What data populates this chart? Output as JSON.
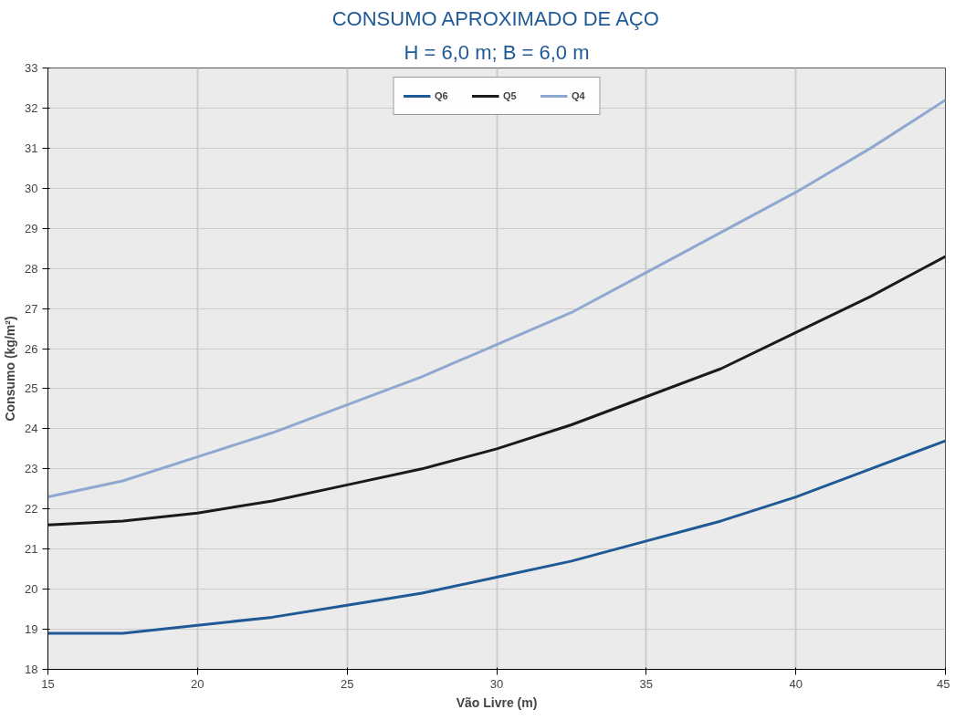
{
  "chart_data": {
    "type": "line",
    "title": "CONSUMO APROXIMADO DE AÇO",
    "subtitle": "H = 6,0 m; B = 6,0 m",
    "xlabel": "Vão Livre (m)",
    "ylabel": "Consumo (kg/m²)",
    "x": [
      15,
      17.5,
      20,
      22.5,
      25,
      27.5,
      30,
      32.5,
      35,
      37.5,
      40,
      42.5,
      45
    ],
    "series": [
      {
        "name": "Q6",
        "color": "#1f5a96",
        "values": [
          18.9,
          18.9,
          19.1,
          19.3,
          19.6,
          19.9,
          20.3,
          20.7,
          21.2,
          21.7,
          22.3,
          23.0,
          23.7
        ]
      },
      {
        "name": "Q5",
        "color": "#1a1a1a",
        "values": [
          21.6,
          21.7,
          21.9,
          22.2,
          22.6,
          23.0,
          23.5,
          24.1,
          24.8,
          25.5,
          26.4,
          27.3,
          28.3
        ]
      },
      {
        "name": "Q4",
        "color": "#8fa8d0",
        "values": [
          22.3,
          22.7,
          23.3,
          23.9,
          24.6,
          25.3,
          26.1,
          26.9,
          27.9,
          28.9,
          29.9,
          31.0,
          32.2
        ]
      }
    ],
    "xlim": [
      15,
      45
    ],
    "xticks": [
      15,
      20,
      25,
      30,
      35,
      40,
      45
    ],
    "ylim": [
      18,
      33
    ],
    "yticks": [
      18,
      19,
      20,
      21,
      22,
      23,
      24,
      25,
      26,
      27,
      28,
      29,
      30,
      31,
      32,
      33
    ],
    "grid": true,
    "legend": "top",
    "line_style": "solid",
    "marker": "none"
  }
}
